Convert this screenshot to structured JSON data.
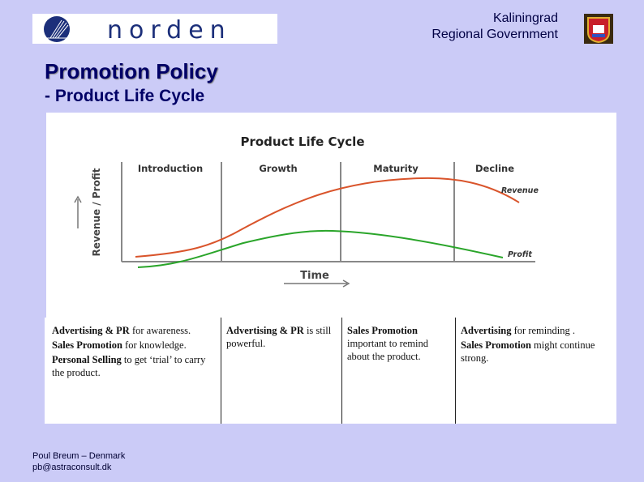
{
  "header": {
    "logo_text": "norden",
    "gov_line1": "Kaliningrad",
    "gov_line2": "Regional Government"
  },
  "title": "Promotion Policy",
  "subtitle": "- Product Life Cycle",
  "diagram": {
    "title": "Product Life Cycle",
    "phases": [
      "Introduction",
      "Growth",
      "Maturity",
      "Decline"
    ],
    "y_label": "Revenue / Profit",
    "x_label": "Time",
    "revenue_label": "Revenue",
    "profit_label": "Profit",
    "colors": {
      "revenue": "#d9542b",
      "profit": "#2aa52a"
    }
  },
  "columns": [
    [
      [
        {
          "b": "Advertising & PR",
          "t": " for awareness."
        }
      ],
      [
        {
          "b": "Sales Promotion",
          "t": " for knowledge."
        }
      ],
      [
        {
          "b": "Personal Selling",
          "t": " to get ‘trial’ to carry the product."
        }
      ]
    ],
    [
      [
        {
          "b": "Advertising & PR",
          "t": " is still powerful."
        }
      ]
    ],
    [
      [
        {
          "b": "Sales Promotion",
          "t": " important to remind about the product."
        }
      ]
    ],
    [
      [
        {
          "b": "Advertising",
          "t": " for reminding ."
        }
      ],
      [
        {
          "b": "Sales Promotion",
          "t": " might continue strong."
        }
      ]
    ]
  ],
  "footer": {
    "line1": "Poul Breum – Denmark",
    "line2": "pb@astraconsult.dk"
  }
}
